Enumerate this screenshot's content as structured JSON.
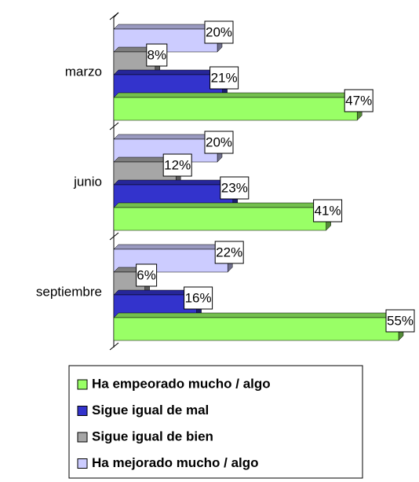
{
  "chart_data": {
    "type": "bar3d-horizontal",
    "categories": [
      "marzo",
      "junio",
      "septiembre"
    ],
    "series": [
      {
        "name": "Ha empeorado mucho / algo",
        "color": "#99ff66",
        "values": [
          47,
          41,
          55
        ],
        "value_labels": [
          "47%",
          "41%",
          "55%"
        ]
      },
      {
        "name": "Sigue igual de mal",
        "color": "#3333cc",
        "values": [
          21,
          23,
          16
        ],
        "value_labels": [
          "21%",
          "23%",
          "16%"
        ]
      },
      {
        "name": "Sigue igual de bien",
        "color": "#a6a6a6",
        "values": [
          8,
          12,
          6
        ],
        "value_labels": [
          "8%",
          "12%",
          "6%"
        ]
      },
      {
        "name": "Ha mejorado mucho / algo",
        "color": "#ccccff",
        "values": [
          20,
          20,
          22
        ],
        "value_labels": [
          "20%",
          "20%",
          "22%"
        ]
      }
    ],
    "legend": "bottom"
  }
}
